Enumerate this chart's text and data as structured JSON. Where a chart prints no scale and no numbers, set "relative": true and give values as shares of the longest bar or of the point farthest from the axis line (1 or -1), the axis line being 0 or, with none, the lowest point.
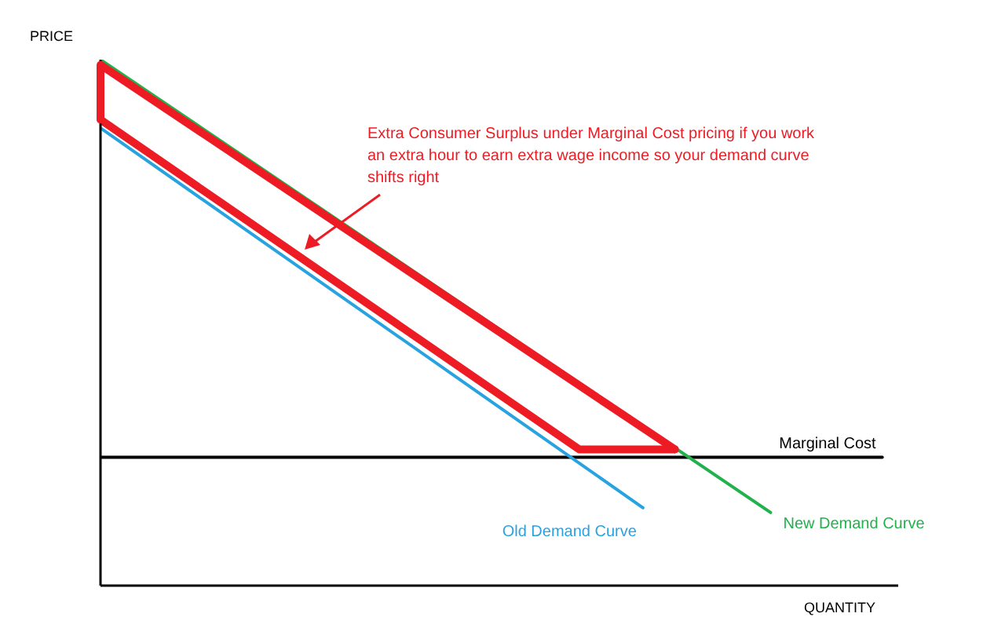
{
  "chart_data": {
    "type": "line",
    "relative": true,
    "xlabel": "QUANTITY",
    "ylabel": "PRICE",
    "categories": [
      null,
      null,
      null,
      null,
      null,
      null,
      null,
      null,
      null,
      null,
      null,
      null,
      null,
      null,
      null,
      null,
      null,
      null,
      null,
      null,
      null,
      null,
      null,
      null,
      null,
      null,
      null,
      null,
      null,
      null,
      null,
      null,
      null,
      null,
      null,
      null,
      null,
      null,
      null,
      null,
      null,
      null,
      null,
      null,
      null,
      null,
      null,
      null,
      null,
      null,
      null
    ],
    "series": [
      {
        "name": "Marginal Cost",
        "color": "#000000",
        "values": [
          0.244,
          null,
          null,
          null,
          null,
          null,
          null,
          null,
          null,
          null,
          null,
          null,
          null,
          null,
          null,
          null,
          null,
          null,
          null,
          null,
          null,
          null,
          null,
          null,
          null,
          null,
          null,
          null,
          null,
          null,
          null,
          null,
          null,
          null,
          null,
          null,
          null,
          null,
          null,
          null,
          null,
          null,
          null,
          null,
          null,
          null,
          null,
          null,
          null,
          0.244,
          null
        ]
      },
      {
        "name": "Old Demand Curve",
        "color": "#29a3e0",
        "values": [
          0.87,
          null,
          null,
          null,
          null,
          null,
          null,
          null,
          null,
          null,
          null,
          null,
          null,
          null,
          null,
          null,
          null,
          null,
          null,
          null,
          null,
          null,
          null,
          null,
          null,
          null,
          null,
          null,
          null,
          null,
          null,
          null,
          null,
          null,
          0.148,
          null,
          null,
          null,
          null,
          null,
          null,
          null,
          null,
          null,
          null,
          null,
          null,
          null,
          null,
          null,
          null
        ]
      },
      {
        "name": "New Demand Curve",
        "color": "#22b14c",
        "values": [
          1,
          null,
          null,
          null,
          null,
          null,
          null,
          null,
          null,
          null,
          null,
          null,
          null,
          null,
          null,
          null,
          null,
          null,
          null,
          null,
          null,
          null,
          null,
          null,
          null,
          null,
          null,
          null,
          null,
          null,
          null,
          null,
          null,
          null,
          null,
          null,
          null,
          null,
          null,
          null,
          null,
          null,
          0.139,
          null,
          null,
          null,
          null,
          null,
          null,
          null,
          null
        ]
      },
      {
        "color": "#ed1c24",
        "values": [
          0.99,
          null,
          null,
          null,
          null,
          null,
          null,
          null,
          null,
          null,
          null,
          null,
          null,
          null,
          null,
          null,
          null,
          null,
          null,
          null,
          null,
          null,
          null,
          null,
          null,
          null,
          null,
          null,
          null,
          null,
          null,
          null,
          null,
          null,
          null,
          null,
          0.259,
          null,
          null,
          null,
          null,
          null,
          null,
          null,
          null,
          null,
          null,
          null,
          null,
          null,
          null
        ]
      },
      {
        "color": "#ed1c24",
        "values": [
          0.886,
          null,
          null,
          null,
          null,
          null,
          null,
          null,
          null,
          null,
          null,
          null,
          null,
          null,
          null,
          null,
          null,
          null,
          null,
          null,
          null,
          null,
          null,
          null,
          null,
          null,
          null,
          null,
          null,
          null,
          0.259,
          null,
          null,
          null,
          null,
          null,
          0.259,
          null,
          null,
          null,
          null,
          null,
          null,
          null,
          null,
          null,
          null,
          null,
          null,
          null,
          null
        ]
      }
    ],
    "annotations": [
      "Extra Consumer Surplus under Marginal Cost pricing if you work an extra hour to earn extra wage income so your demand curve shifts right"
    ]
  }
}
